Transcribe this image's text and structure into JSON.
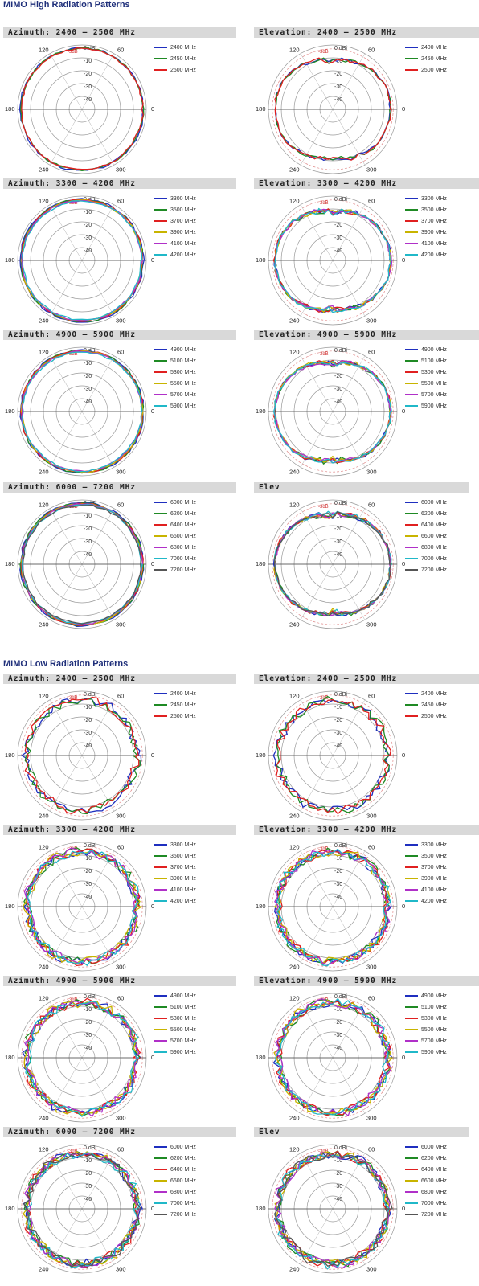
{
  "sections": [
    {
      "title": "MIMO High Radiation Patterns"
    },
    {
      "title": "MIMO Low Radiation Patterns"
    }
  ],
  "colors": {
    "2400 MHz": "#1f2fbf",
    "2450 MHz": "#1f8a24",
    "2500 MHz": "#e02020",
    "3300 MHz": "#1f2fbf",
    "3500 MHz": "#1f8a24",
    "3700 MHz": "#e02020",
    "3900 MHz": "#c8b400",
    "4100 MHz": "#b030c8",
    "4200 MHz": "#20b8c8",
    "4900 MHz": "#1f2fbf",
    "5100 MHz": "#1f8a24",
    "5300 MHz": "#e02020",
    "5500 MHz": "#c8b400",
    "5700 MHz": "#b030c8",
    "5900 MHz": "#20b8c8",
    "6000 MHz": "#1f2fbf",
    "6200 MHz": "#1f8a24",
    "6400 MHz": "#e02020",
    "6600 MHz": "#c8b400",
    "6800 MHz": "#b030c8",
    "7000 MHz": "#20b8c8",
    "7200 MHz": "#555555"
  },
  "polar_labels": {
    "rings": [
      "0 dBi",
      "-10",
      "-20",
      "-30",
      "-40"
    ],
    "ref_ring": "-3dB",
    "angles": [
      "0",
      "60",
      "120",
      "180",
      "240",
      "300"
    ]
  },
  "chart_data": [
    {
      "type": "polar",
      "section": 0,
      "title": "Azimuth: 2400 – 2500 MHz",
      "rlim": [
        -50,
        0
      ],
      "series": [
        {
          "name": "2400 MHz"
        },
        {
          "name": "2450 MHz"
        },
        {
          "name": "2500 MHz"
        }
      ]
    },
    {
      "type": "polar",
      "section": 0,
      "title": "Elevation: 2400 – 2500 MHz",
      "rlim": [
        -50,
        0
      ],
      "series": [
        {
          "name": "2400 MHz"
        },
        {
          "name": "2450 MHz"
        },
        {
          "name": "2500 MHz"
        }
      ]
    },
    {
      "type": "polar",
      "section": 0,
      "title": "Azimuth: 3300 – 4200 MHz",
      "rlim": [
        -50,
        0
      ],
      "series": [
        {
          "name": "3300 MHz"
        },
        {
          "name": "3500 MHz"
        },
        {
          "name": "3700 MHz"
        },
        {
          "name": "3900 MHz"
        },
        {
          "name": "4100 MHz"
        },
        {
          "name": "4200 MHz"
        }
      ]
    },
    {
      "type": "polar",
      "section": 0,
      "title": "Elevation: 3300 – 4200 MHz",
      "rlim": [
        -50,
        0
      ],
      "series": [
        {
          "name": "3300 MHz"
        },
        {
          "name": "3500 MHz"
        },
        {
          "name": "3700 MHz"
        },
        {
          "name": "3900 MHz"
        },
        {
          "name": "4100 MHz"
        },
        {
          "name": "4200 MHz"
        }
      ]
    },
    {
      "type": "polar",
      "section": 0,
      "title": "Azimuth: 4900 – 5900 MHz",
      "rlim": [
        -50,
        0
      ],
      "series": [
        {
          "name": "4900 MHz"
        },
        {
          "name": "5100 MHz"
        },
        {
          "name": "5300 MHz"
        },
        {
          "name": "5500 MHz"
        },
        {
          "name": "5700 MHz"
        },
        {
          "name": "5900 MHz"
        }
      ]
    },
    {
      "type": "polar",
      "section": 0,
      "title": "Elevation: 4900 – 5900 MHz",
      "rlim": [
        -50,
        0
      ],
      "series": [
        {
          "name": "4900 MHz"
        },
        {
          "name": "5100 MHz"
        },
        {
          "name": "5300 MHz"
        },
        {
          "name": "5500 MHz"
        },
        {
          "name": "5700 MHz"
        },
        {
          "name": "5900 MHz"
        }
      ]
    },
    {
      "type": "polar",
      "section": 0,
      "title": "Azimuth: 6000 – 7200 MHz",
      "rlim": [
        -50,
        0
      ],
      "series": [
        {
          "name": "6000 MHz"
        },
        {
          "name": "6200 MHz"
        },
        {
          "name": "6400 MHz"
        },
        {
          "name": "6600 MHz"
        },
        {
          "name": "6800 MHz"
        },
        {
          "name": "7000 MHz"
        },
        {
          "name": "7200 MHz"
        }
      ]
    },
    {
      "type": "polar",
      "section": 0,
      "title": "Elev",
      "rlim": [
        -50,
        0
      ],
      "series": [
        {
          "name": "6000 MHz"
        },
        {
          "name": "6200 MHz"
        },
        {
          "name": "6400 MHz"
        },
        {
          "name": "6600 MHz"
        },
        {
          "name": "6800 MHz"
        },
        {
          "name": "7000 MHz"
        },
        {
          "name": "7200 MHz"
        }
      ]
    },
    {
      "type": "polar",
      "section": 1,
      "title": "Azimuth: 2400 – 2500 MHz",
      "rlim": [
        -50,
        0
      ],
      "series": [
        {
          "name": "2400 MHz"
        },
        {
          "name": "2450 MHz"
        },
        {
          "name": "2500 MHz"
        }
      ]
    },
    {
      "type": "polar",
      "section": 1,
      "title": "Elevation: 2400 – 2500 MHz",
      "rlim": [
        -50,
        0
      ],
      "series": [
        {
          "name": "2400 MHz"
        },
        {
          "name": "2450 MHz"
        },
        {
          "name": "2500 MHz"
        }
      ]
    },
    {
      "type": "polar",
      "section": 1,
      "title": "Azimuth: 3300 – 4200 MHz",
      "rlim": [
        -50,
        0
      ],
      "series": [
        {
          "name": "3300 MHz"
        },
        {
          "name": "3500 MHz"
        },
        {
          "name": "3700 MHz"
        },
        {
          "name": "3900 MHz"
        },
        {
          "name": "4100 MHz"
        },
        {
          "name": "4200 MHz"
        }
      ]
    },
    {
      "type": "polar",
      "section": 1,
      "title": "Elevation: 3300 – 4200 MHz",
      "rlim": [
        -50,
        0
      ],
      "series": [
        {
          "name": "3300 MHz"
        },
        {
          "name": "3500 MHz"
        },
        {
          "name": "3700 MHz"
        },
        {
          "name": "3900 MHz"
        },
        {
          "name": "4100 MHz"
        },
        {
          "name": "4200 MHz"
        }
      ]
    },
    {
      "type": "polar",
      "section": 1,
      "title": "Azimuth: 4900 – 5900 MHz",
      "rlim": [
        -50,
        0
      ],
      "series": [
        {
          "name": "4900 MHz"
        },
        {
          "name": "5100 MHz"
        },
        {
          "name": "5300 MHz"
        },
        {
          "name": "5500 MHz"
        },
        {
          "name": "5700 MHz"
        },
        {
          "name": "5900 MHz"
        }
      ]
    },
    {
      "type": "polar",
      "section": 1,
      "title": "Elevation: 4900 – 5900 MHz",
      "rlim": [
        -50,
        0
      ],
      "series": [
        {
          "name": "4900 MHz"
        },
        {
          "name": "5100 MHz"
        },
        {
          "name": "5300 MHz"
        },
        {
          "name": "5500 MHz"
        },
        {
          "name": "5700 MHz"
        },
        {
          "name": "5900 MHz"
        }
      ]
    },
    {
      "type": "polar",
      "section": 1,
      "title": "Azimuth: 6000 – 7200 MHz",
      "rlim": [
        -50,
        0
      ],
      "series": [
        {
          "name": "6000 MHz"
        },
        {
          "name": "6200 MHz"
        },
        {
          "name": "6400 MHz"
        },
        {
          "name": "6600 MHz"
        },
        {
          "name": "6800 MHz"
        },
        {
          "name": "7000 MHz"
        },
        {
          "name": "7200 MHz"
        }
      ]
    },
    {
      "type": "polar",
      "section": 1,
      "title": "Elev",
      "rlim": [
        -50,
        0
      ],
      "series": [
        {
          "name": "6000 MHz"
        },
        {
          "name": "6200 MHz"
        },
        {
          "name": "6400 MHz"
        },
        {
          "name": "6600 MHz"
        },
        {
          "name": "6800 MHz"
        },
        {
          "name": "7000 MHz"
        },
        {
          "name": "7200 MHz"
        }
      ]
    }
  ]
}
